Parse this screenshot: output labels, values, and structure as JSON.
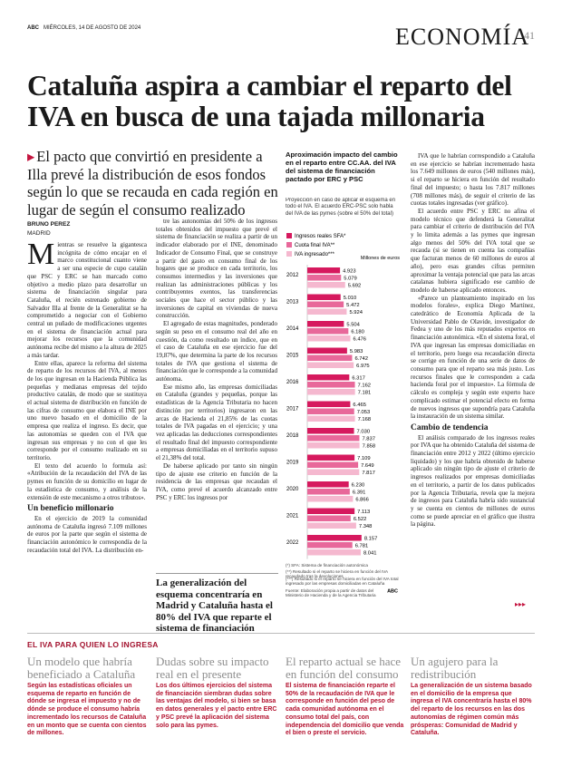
{
  "header": {
    "newspaper": "ABC",
    "date": "MIÉRCOLES, 14 DE AGOSTO DE 2024",
    "section": "ECONOMÍA",
    "page": "41"
  },
  "article": {
    "headline": "Cataluña aspira a cambiar el reparto del IVA en busca de una tajada millonaria",
    "subheadline": "El pacto que convirtió en presidente a Illa prevé la distribución de esos fondos según lo que se recauda en cada región en lugar de según el consumo realizado",
    "author": "BRUNO PEREZ",
    "location": "MADRID",
    "columns": [
      [
        {
          "p": "Mientras se resuelve la gigantesca incógnita de cómo encajar en el marco constitucional cuanto viene a ser una especie de cupo catalán que PSC y ERC se han marcado como objetivo a medio plazo para desarrollar un sistema de financiación singular para Cataluña, el recién estrenado gobierno de Salvador Illa al frente de la Generalitat se ha comprometido a negociar con el Gobierno central un puñado de modificaciones urgentes en el sistema de financiación actual para mejorar los recursos que la comunidad autónoma recibe del mismo a la altura de 2025 a más tardar."
        },
        {
          "p": "Entre ellas, aparece la reforma del sistema de reparto de los recursos del IVA, al menos de los que ingresan en la Hacienda Pública las pequeñas y medianas empresas del tejido productivo catalán, de modo que se sustituya el actual sistema de distribución en función de las cifras de consumo que elabora el INE por uno nuevo basado en el domicilio de la empresa que realiza el ingreso. Es decir, que las autonomías se queden con el IVA que ingresan sus empresas y no con el que les corresponde por el consumo realizado en su territorio."
        },
        {
          "p": "El texto del acuerdo lo formula así: «Atribución de la recaudación del IVA de las pymes en función de su domicilio en lugar de la estadística de consumo, y análisis de la extensión de este mecanismo a otros tributos»."
        },
        {
          "h": "Un beneficio millonario"
        },
        {
          "p": "En el ejercicio de 2019 la comunidad autónoma de Cataluña ingresó 7.109 millones de euros por la parte que según el sistema de financiación autonómico le correspondía de la recaudación total del IVA. La distribución en-"
        }
      ],
      [
        {
          "p": "tre las autonomías del 50% de los ingresos totales obtenidos del impuesto que prevé el sistema de financiación se realiza a partir de un indicador elaborado por el INE, denominado Indicador de Consumo Final, que se construye a partir del gasto en consumo final de los hogares que se produce en cada territorio, los consumos intermedios y las inversiones que realizan las administraciones públicas y los contribuyentes exentos, las transferencias sociales que hace el sector público y las inversiones de capital en viviendas de nueva construcción."
        },
        {
          "p": "El agregado de estas magnitudes, ponderado según su peso en el consumo real del año en cuestión, da como resultado un índice, que en el caso de Cataluña en ese ejercicio fue del 19,87%, que determina la parte de los recursos totales de IVA que gestiona el sistema de financiación que le corresponde a la comunidad autónoma."
        },
        {
          "p": "Ese mismo año, las empresas domiciliadas en Cataluña (grandes y pequeñas, porque las estadísticas de la Agencia Tributaria no hacen distinción por territorios) ingresaron en las arcas de Hacienda el 21,85% de las cuotas totales de IVA pagadas en el ejercicio; y una vez aplicadas las deducciones correspondientes el resultado final del impuesto correspondiente a empresas domiciliadas en el territorio supuso el 21,38% del total."
        },
        {
          "p": "De haberse aplicado por tanto sin ningún tipo de ajuste ese criterio en función de la residencia de las empresas que recaudan el IVA, como prevé el acuerdo alcanzado entre PSC y ERC los ingresos por"
        }
      ],
      [
        {
          "p": "IVA que le habrían correspondido a Cataluña en ese ejercicio se habrían incrementado hasta los 7.649 millones de euros (540 millones más), si el reparto se hiciera en función del resultado final del impuesto; o hasta los 7.817 millones (708 millones más), de seguir el criterio de las cuotas totales ingresadas (ver gráfico)."
        },
        {
          "p": "El acuerdo entre PSC y ERC no afina el modelo técnico que defenderá la Generalitat para cambiar el criterio de distribución del IVA y lo limita además a las pymes que ingresan algo menos del 50% del IVA total que se recauda (si se tienen en cuenta las compañías que facturan menos de 60 millones de euros al año), pero esas grandes cifras permiten aproximar la ventaja potencial que para las arcas catalanas hubiera significado ese cambio de modelo de haberse aplicado entonces."
        },
        {
          "p": "«Parece un planteamiento inspirado en los modelos forales», explica Diego Martínez, catedrático de Economía Aplicada de la Universidad Pablo de Olavide, investigador de Fedea y uno de los más reputados expertos en financiación autonómica. «En el sistema foral, el IVA que ingresan las empresas domiciliadas en el territorio, pero luego esa recaudación directa se corrige en función de una serie de datos de consumo para que el reparto sea más justo. Los recursos finales que le corresponden a cada hacienda foral por el impuesto». La fórmula de cálculo es compleja y según este experto hace complicado estimar el potencial efecto en forma de nuevos ingresos que supondría para Cataluña la instauración de un sistema similar."
        },
        {
          "h": "Cambio de tendencia"
        },
        {
          "p": "El análisis comparado de los ingresos reales por IVA que ha obtenido Cataluña del sistema de financiación entre 2012 y 2022 (último ejercicio liquidado) y los que habría obtenido de haberse aplicado sin ningún tipo de ajuste el criterio de ingresos realizados por empresas domiciliadas en el territorio, a partir de los datos publicados por la Agencia Tributaria, revela que la mejora de ingresos para Cataluña habría sido sustancial y se cuenta en cientos de millones de euros como se puede apreciar en el gráfico que ilustra la página."
        }
      ]
    ],
    "pull_quote": "La generalización del esquema concentraría en Madrid y Cataluña hasta el 80% del IVA que reparte el sistema de financiación"
  },
  "chart_data": {
    "type": "bar",
    "orientation": "horizontal",
    "title": "Aproximación impacto del cambio en el reparto entre CC.AA. del IVA del sistema de financiación pactado por ERC y PSC",
    "subtitle": "Proyección en caso de aplicar el esquema en todo el IVA. El acuerdo ERC-PSC solo habla del IVA de las pymes (sobre el 50% del total)",
    "unit": "Millones de euros",
    "categories": [
      "2012",
      "2013",
      "2014",
      "2015",
      "2016",
      "2017",
      "2018",
      "2019",
      "2020",
      "2021",
      "2022"
    ],
    "series": [
      {
        "name": "Ingresos reales SFA*",
        "color": "#d6195e",
        "values": [
          4923,
          5010,
          5504,
          5983,
          6317,
          6465,
          7030,
          7109,
          6230,
          7113,
          8157
        ],
        "value_labels": [
          "4.923",
          "5.010",
          "5.504",
          "5.983",
          "6.317",
          "6.465",
          "7.030",
          "7.109",
          "6.230",
          "7.113",
          "8.157"
        ]
      },
      {
        "name": "Cuota final IVA**",
        "color": "#e8689a",
        "values": [
          5079,
          5472,
          6180,
          6742,
          7162,
          7053,
          7837,
          7649,
          6391,
          6522,
          6781
        ],
        "value_labels": [
          "5.079",
          "5.472",
          "6.180",
          "6.742",
          "7.162",
          "7.053",
          "7.837",
          "7.649",
          "6.391",
          "6.522",
          "6.781"
        ]
      },
      {
        "name": "IVA ingresado***",
        "color": "#f5b8cf",
        "values": [
          5692,
          5924,
          6476,
          6975,
          7181,
          7168,
          7858,
          7817,
          6866,
          7348,
          8041
        ],
        "value_labels": [
          "5.692",
          "5.924",
          "6.476",
          "6.975",
          "7.181",
          "7.168",
          "7.858",
          "7.817",
          "6.866",
          "7.348",
          "8.041"
        ]
      }
    ],
    "xlim": [
      0,
      9000
    ],
    "notes": [
      "(*) SFA: Sistema de financiación autonómica",
      "(**) Resultado si el reparto se hiciera en función del IVA recaudado tras la devoluciones",
      "(***) Resultado si el reparto se hiciera en función del IVA total ingresado por las empresas domiciliadas en Cataluña"
    ],
    "source": "Fuente: Elaboración propia a partir de datos del Ministerio de Hacienda y de la Agencia Tributaria",
    "credit": "ABC"
  },
  "sidebar": {
    "title": "EL IVA PARA QUIEN LO INGRESA",
    "items": [
      {
        "heading": "Un modelo que habría beneficiado a Cataluña",
        "text": "Según las estadísticas oficiales un esquema de reparto en función de dónde se ingresa el impuesto y no de dónde se produce el consumo habría incrementado los recursos de Cataluña en un monto que se cuenta con cientos de millones."
      },
      {
        "heading": "Dudas sobre su impacto real en el presente",
        "text": "Los dos últimos ejercicios del sistema de financiación siembran dudas sobre las ventajas del modelo, si bien se basa en datos generales y el pacto entre ERC y PSC prevé la aplicación del sistema solo para las pymes."
      },
      {
        "heading": "El reparto actual se hace en función del consumo",
        "text": "El sistema de financiación reparte el 50% de la recaudación de IVA que le corresponde en función del peso de cada comunidad autónoma en el consumo total del país, con independencia del domicilio que venda el bien o preste el servicio."
      },
      {
        "heading": "Un agujero para la redistribución",
        "text": "La generalización de un sistema basado en el domicilio de la empresa que ingresa el IVA concentraría hasta el 80% del reparto de los recursos en las dos autonomías de régimen común más prósperas: Comunidad de Madrid y Cataluña."
      }
    ]
  }
}
